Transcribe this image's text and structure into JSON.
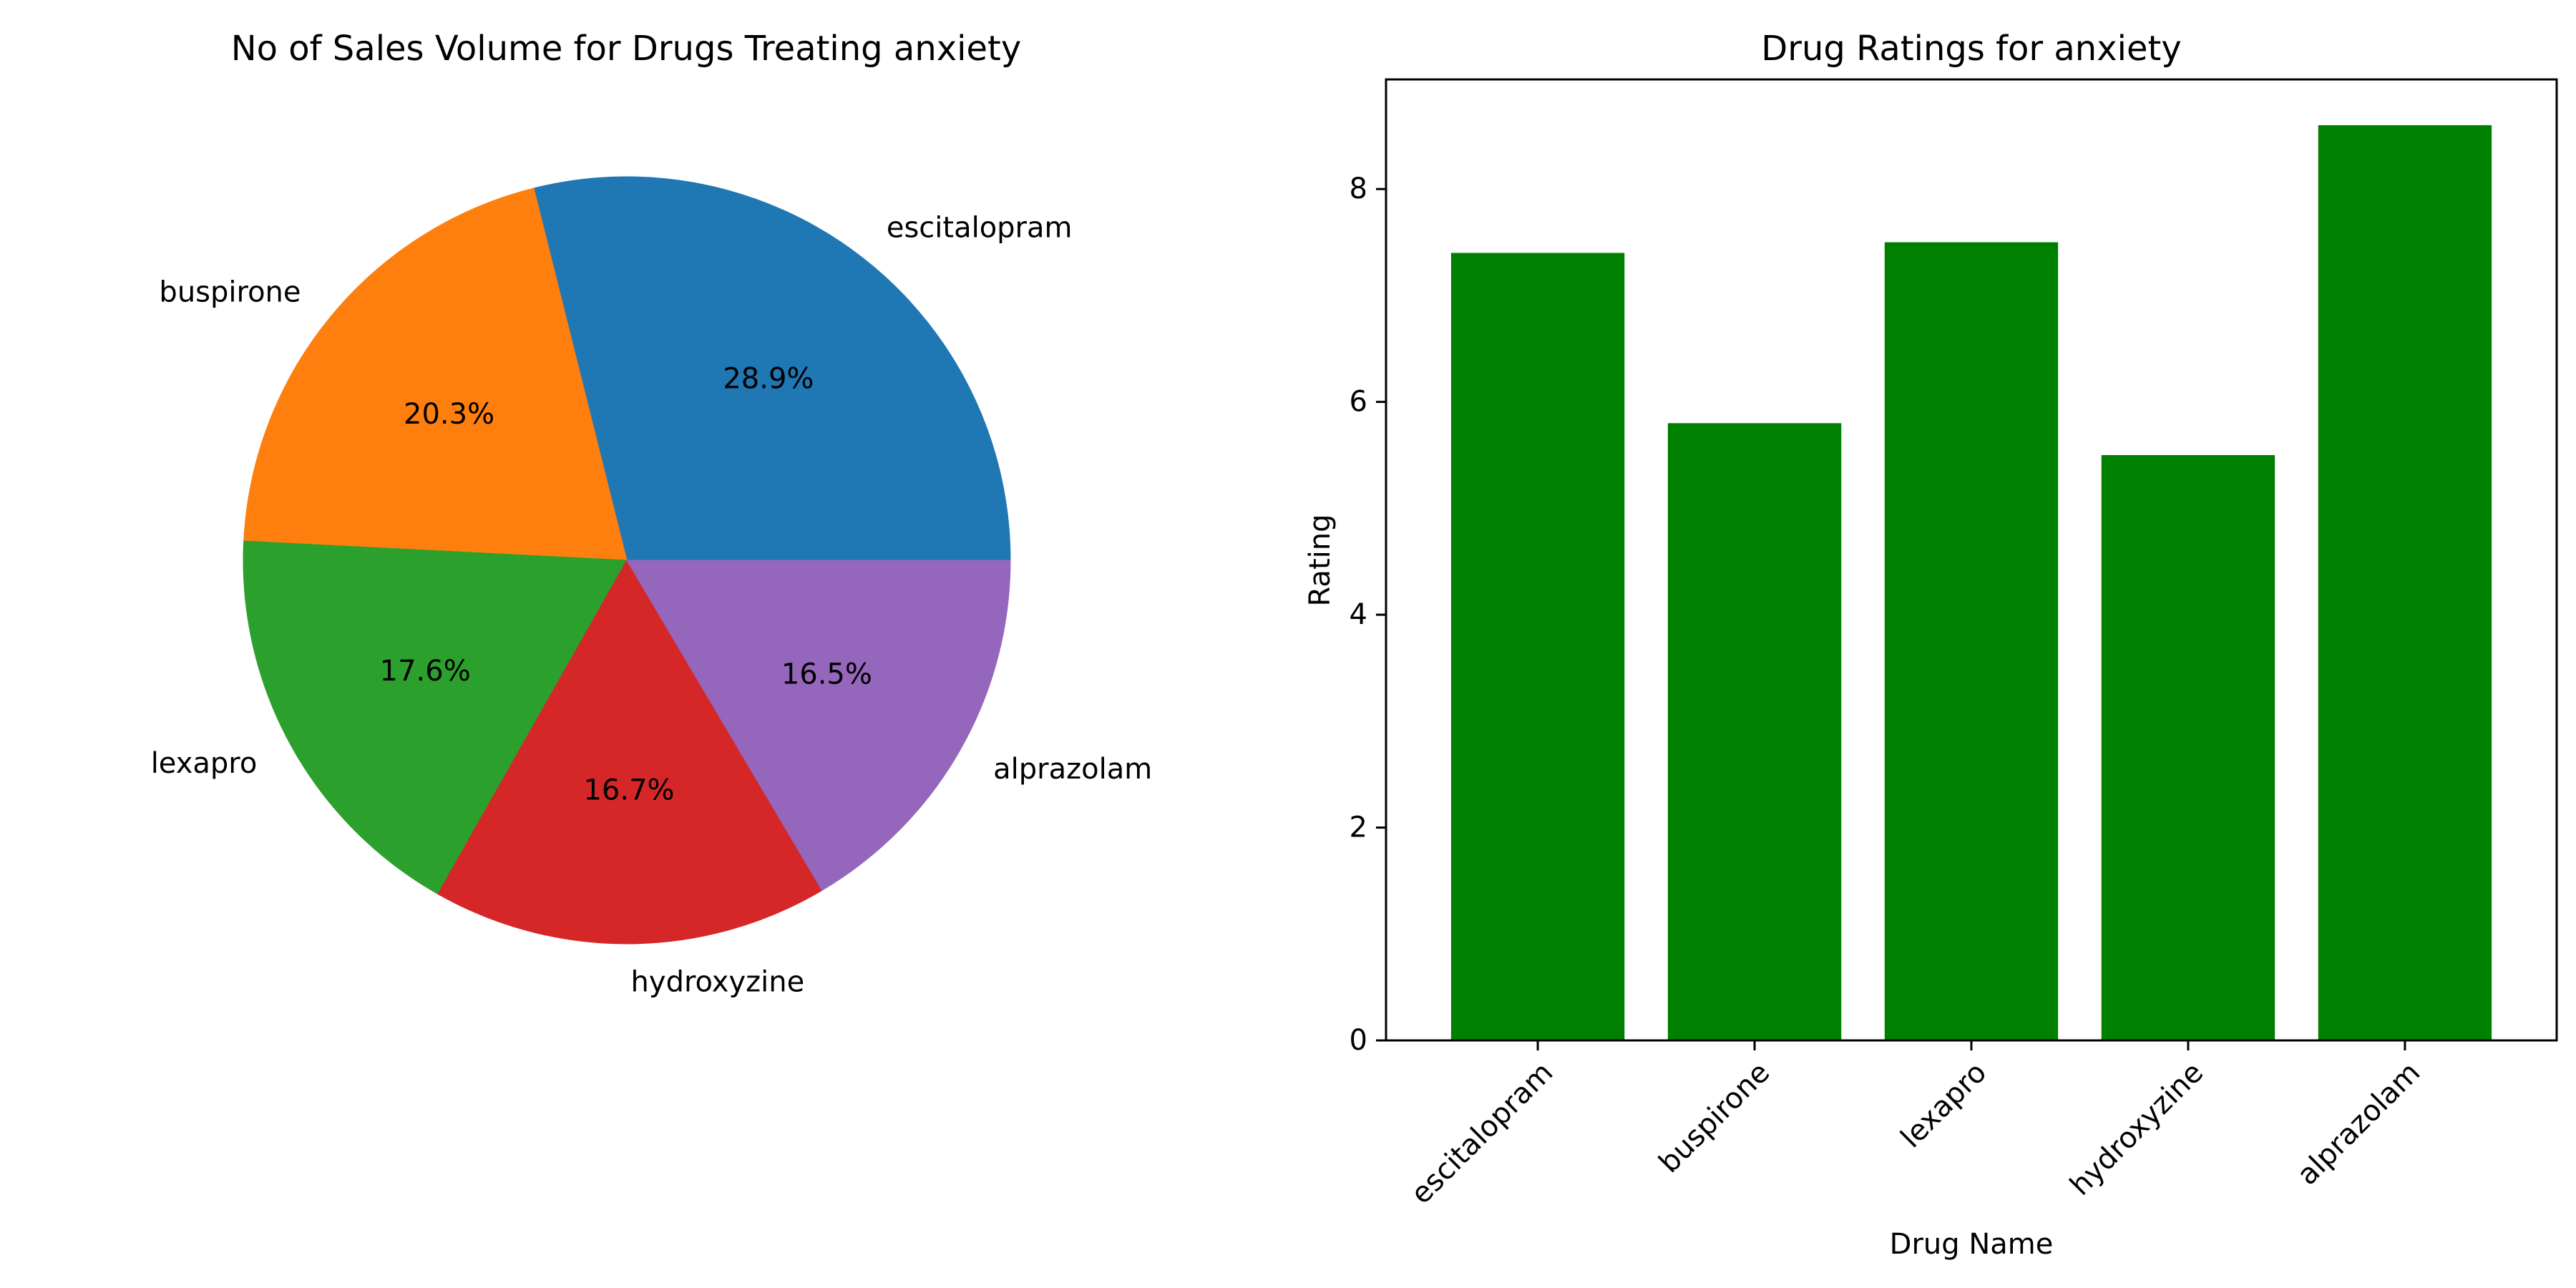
{
  "chart_data": [
    {
      "type": "pie",
      "title": "No of Sales Volume for Drugs Treating anxiety",
      "categories": [
        "escitalopram",
        "buspirone",
        "lexapro",
        "hydroxyzine",
        "alprazolam"
      ],
      "values": [
        28.9,
        20.3,
        17.6,
        16.7,
        16.5
      ],
      "value_labels": [
        "28.9%",
        "20.3%",
        "17.6%",
        "16.7%",
        "16.5%"
      ],
      "colors": [
        "#1f77b4",
        "#ff7f0e",
        "#2ca02c",
        "#d62728",
        "#9467bd"
      ],
      "start_angle_deg": 0,
      "direction": "counterclockwise"
    },
    {
      "type": "bar",
      "title": "Drug Ratings for anxiety",
      "categories": [
        "escitalopram",
        "buspirone",
        "lexapro",
        "hydroxyzine",
        "alprazolam"
      ],
      "values": [
        7.4,
        5.8,
        7.5,
        5.5,
        8.6
      ],
      "xlabel": "Drug Name",
      "ylabel": "Rating",
      "ylim": [
        0,
        9.03
      ],
      "yticks": [
        0,
        2,
        4,
        6,
        8
      ],
      "color": "#008000",
      "xtick_rotation_deg": 45,
      "grid": false
    }
  ]
}
